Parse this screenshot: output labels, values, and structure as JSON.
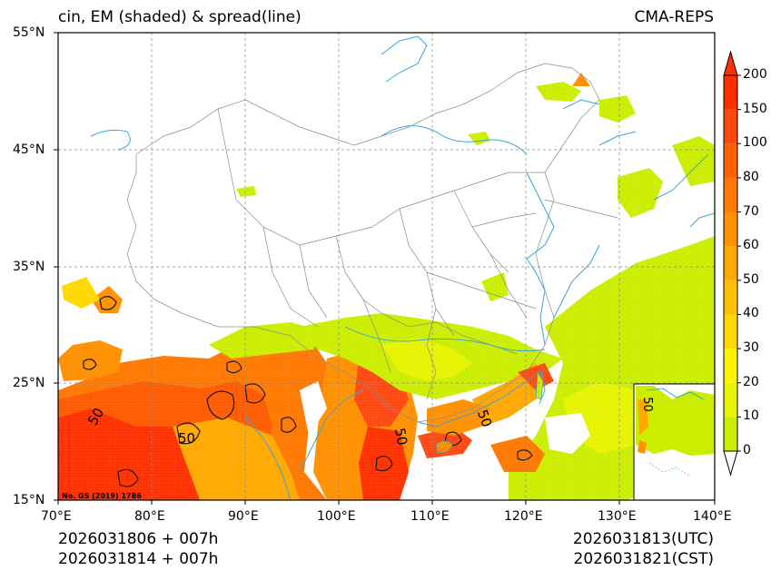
{
  "title": {
    "left": "cin, EM (shaded) & spread(line)",
    "right": "CMA-REPS"
  },
  "axes": {
    "lat_labels": [
      "55°N",
      "45°N",
      "35°N",
      "25°N",
      "15°N"
    ],
    "lon_labels": [
      "70°E",
      "80°E",
      "90°E",
      "100°E",
      "110°E",
      "120°E",
      "130°E",
      "140°E"
    ]
  },
  "colorbar": {
    "levels": [
      "200",
      "150",
      "100",
      "80",
      "70",
      "60",
      "50",
      "40",
      "30",
      "20",
      "10",
      "0"
    ],
    "colors": [
      "#cbee00",
      "#e6f400",
      "#fff200",
      "#ffd800",
      "#ffc000",
      "#ffa800",
      "#ff9000",
      "#ff7800",
      "#ff6000",
      "#ff4810",
      "#ff3000"
    ]
  },
  "map": {
    "watermark": "No. GS (2019) 1786",
    "contour_labels": [
      "50",
      "50",
      "50",
      "50",
      "50"
    ],
    "colors": {
      "land_border": "#888888",
      "river": "#3aa7d8",
      "grid": "#888888"
    }
  },
  "footer": {
    "left_line1": "2026031806  +  007h",
    "left_line2": "2026031814  +  007h",
    "right_line1": "2026031813(UTC)",
    "right_line2": "2026031821(CST)"
  }
}
